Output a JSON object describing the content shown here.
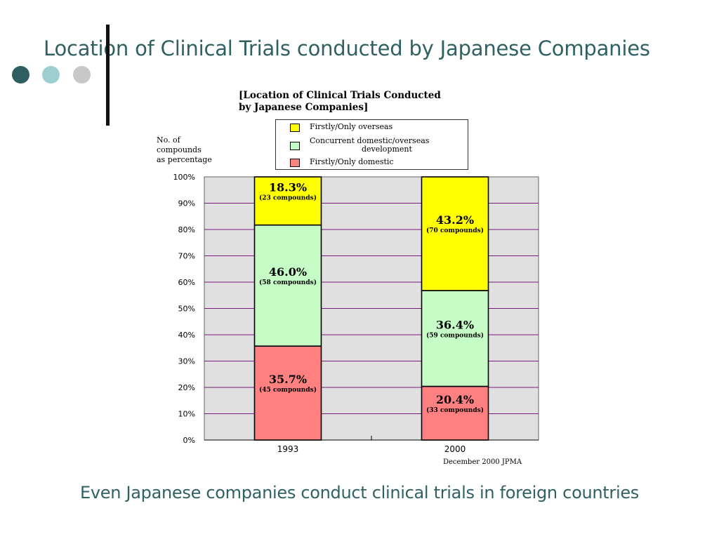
{
  "slide": {
    "title": "Location of Clinical Trials conducted by Japanese Companies",
    "caption": "Even Japanese companies conduct clinical trials in foreign countries"
  },
  "chart_data": {
    "type": "bar",
    "stacked": true,
    "title_line1": "[Location of Clinical Trials Conducted",
    "title_line2": "by Japanese Companies]",
    "ylabel": "No. of\ncompounds\nas percentage",
    "source": "December 2000 JPMA",
    "categories": [
      "1993",
      "2000"
    ],
    "ylim": [
      0,
      100
    ],
    "yticks": [
      "0%",
      "10%",
      "20%",
      "30%",
      "40%",
      "50%",
      "60%",
      "70%",
      "80%",
      "90%",
      "100%"
    ],
    "grid": true,
    "legend_position": "top",
    "series": [
      {
        "name": "Firstly/Only domestic",
        "color": "#ff8080",
        "values": [
          35.7,
          20.4
        ],
        "labels": [
          "35.7%",
          "20.4%"
        ],
        "counts": [
          "(45 compounds)",
          "(33 compounds)"
        ]
      },
      {
        "name": "Concurrent domestic/overseas development",
        "legend_line1": "Concurrent domestic/overseas",
        "legend_line2": "development",
        "color": "#c6fcc6",
        "values": [
          46.0,
          36.4
        ],
        "labels": [
          "46.0%",
          "36.4%"
        ],
        "counts": [
          "(58 compounds)",
          "(59 compounds)"
        ]
      },
      {
        "name": "Firstly/Only overseas",
        "color": "#ffff00",
        "values": [
          18.3,
          43.2
        ],
        "labels": [
          "18.3%",
          "43.2%"
        ],
        "counts": [
          "(23 compounds)",
          "(70 compounds)"
        ]
      }
    ]
  }
}
